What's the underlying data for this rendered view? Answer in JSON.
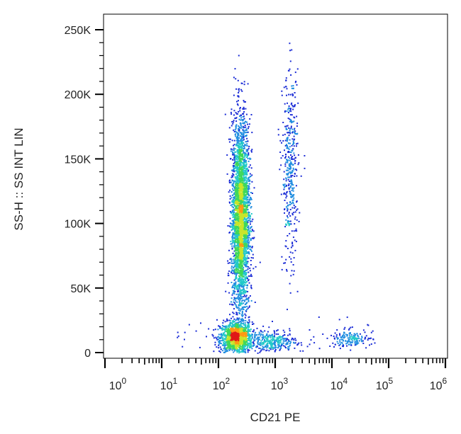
{
  "chart_data": {
    "type": "scatter",
    "xlabel": "CD21 PE",
    "ylabel": "SS-H :: SS INT LIN",
    "x_scale": "log",
    "xlim": [
      1,
      1000000
    ],
    "ylim": [
      0,
      262144
    ],
    "x_ticks": [
      {
        "value": 1,
        "base": "10",
        "exp": "0"
      },
      {
        "value": 10,
        "base": "10",
        "exp": "1"
      },
      {
        "value": 100,
        "base": "10",
        "exp": "2"
      },
      {
        "value": 1000,
        "base": "10",
        "exp": "3"
      },
      {
        "value": 10000,
        "base": "10",
        "exp": "4"
      },
      {
        "value": 100000,
        "base": "10",
        "exp": "5"
      },
      {
        "value": 1000000,
        "base": "10",
        "exp": "6"
      }
    ],
    "y_ticks": [
      {
        "value": 0,
        "label": "0"
      },
      {
        "value": 50000,
        "label": "50K"
      },
      {
        "value": 100000,
        "label": "100K"
      },
      {
        "value": 150000,
        "label": "150K"
      },
      {
        "value": 200000,
        "label": "200K"
      },
      {
        "value": 250000,
        "label": "250K"
      }
    ],
    "density_colors": [
      "#1a2bd6",
      "#1f8de0",
      "#23c9c9",
      "#3fd85a",
      "#c9e52a",
      "#ff9a12",
      "#e01818"
    ],
    "populations": [
      {
        "x_center": 200,
        "x_spread_decades": 0.14,
        "y_center": 12000,
        "y_spread": 6000,
        "count": 1300
      },
      {
        "x_center": 240,
        "x_spread_decades": 0.08,
        "y_center": 105000,
        "y_spread": 38000,
        "count": 3200
      },
      {
        "x_center": 1800,
        "x_spread_decades": 0.07,
        "y_center": 140000,
        "y_spread": 38000,
        "count": 420
      },
      {
        "x_center": 900,
        "x_spread_decades": 0.2,
        "y_center": 9000,
        "y_spread": 3500,
        "count": 300
      },
      {
        "x_center": 20000,
        "x_spread_decades": 0.2,
        "y_center": 11000,
        "y_spread": 3000,
        "count": 160
      }
    ]
  }
}
